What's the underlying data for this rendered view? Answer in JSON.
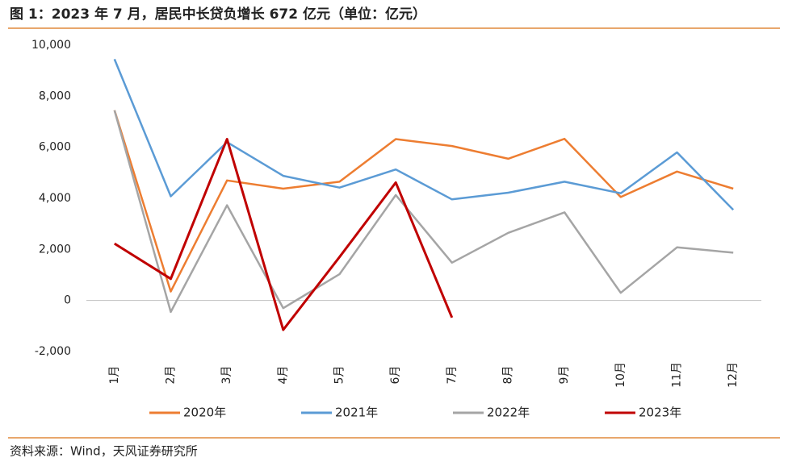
{
  "title": "图 1：2023 年 7 月，居民中长贷负增长 672 亿元（单位：亿元）",
  "source": "资料来源：Wind，天风证券研究所",
  "chart_data": {
    "type": "line",
    "categories": [
      "1月",
      "2月",
      "3月",
      "4月",
      "5月",
      "6月",
      "7月",
      "8月",
      "9月",
      "10月",
      "11月",
      "12月"
    ],
    "series": [
      {
        "name": "2020年",
        "color": "#ed7d31",
        "values": [
          7450,
          350,
          4700,
          4380,
          4650,
          6320,
          6050,
          5550,
          6330,
          4050,
          5050,
          4380
        ]
      },
      {
        "name": "2021年",
        "color": "#5b9bd5",
        "values": [
          9450,
          4080,
          6200,
          4880,
          4420,
          5130,
          3960,
          4220,
          4650,
          4200,
          5800,
          3550
        ]
      },
      {
        "name": "2022年",
        "color": "#a5a5a5",
        "values": [
          7450,
          -450,
          3730,
          -300,
          1030,
          4130,
          1480,
          2650,
          3450,
          300,
          2080,
          1870
        ]
      },
      {
        "name": "2023年",
        "color": "#c00000",
        "values": [
          2230,
          850,
          6320,
          -1150,
          1700,
          4620,
          -672,
          null,
          null,
          null,
          null,
          null
        ]
      }
    ],
    "ylim": [
      -2000,
      10000
    ],
    "yticks": [
      {
        "value": -2000,
        "label": "-2,000"
      },
      0,
      {
        "value": 2000,
        "label": "2,000"
      },
      {
        "value": 4000,
        "label": "4,000"
      },
      {
        "value": 6000,
        "label": "6,000"
      },
      {
        "value": 8000,
        "label": "8,000"
      },
      {
        "value": 10000,
        "label": "10,000"
      }
    ],
    "grid": false
  }
}
